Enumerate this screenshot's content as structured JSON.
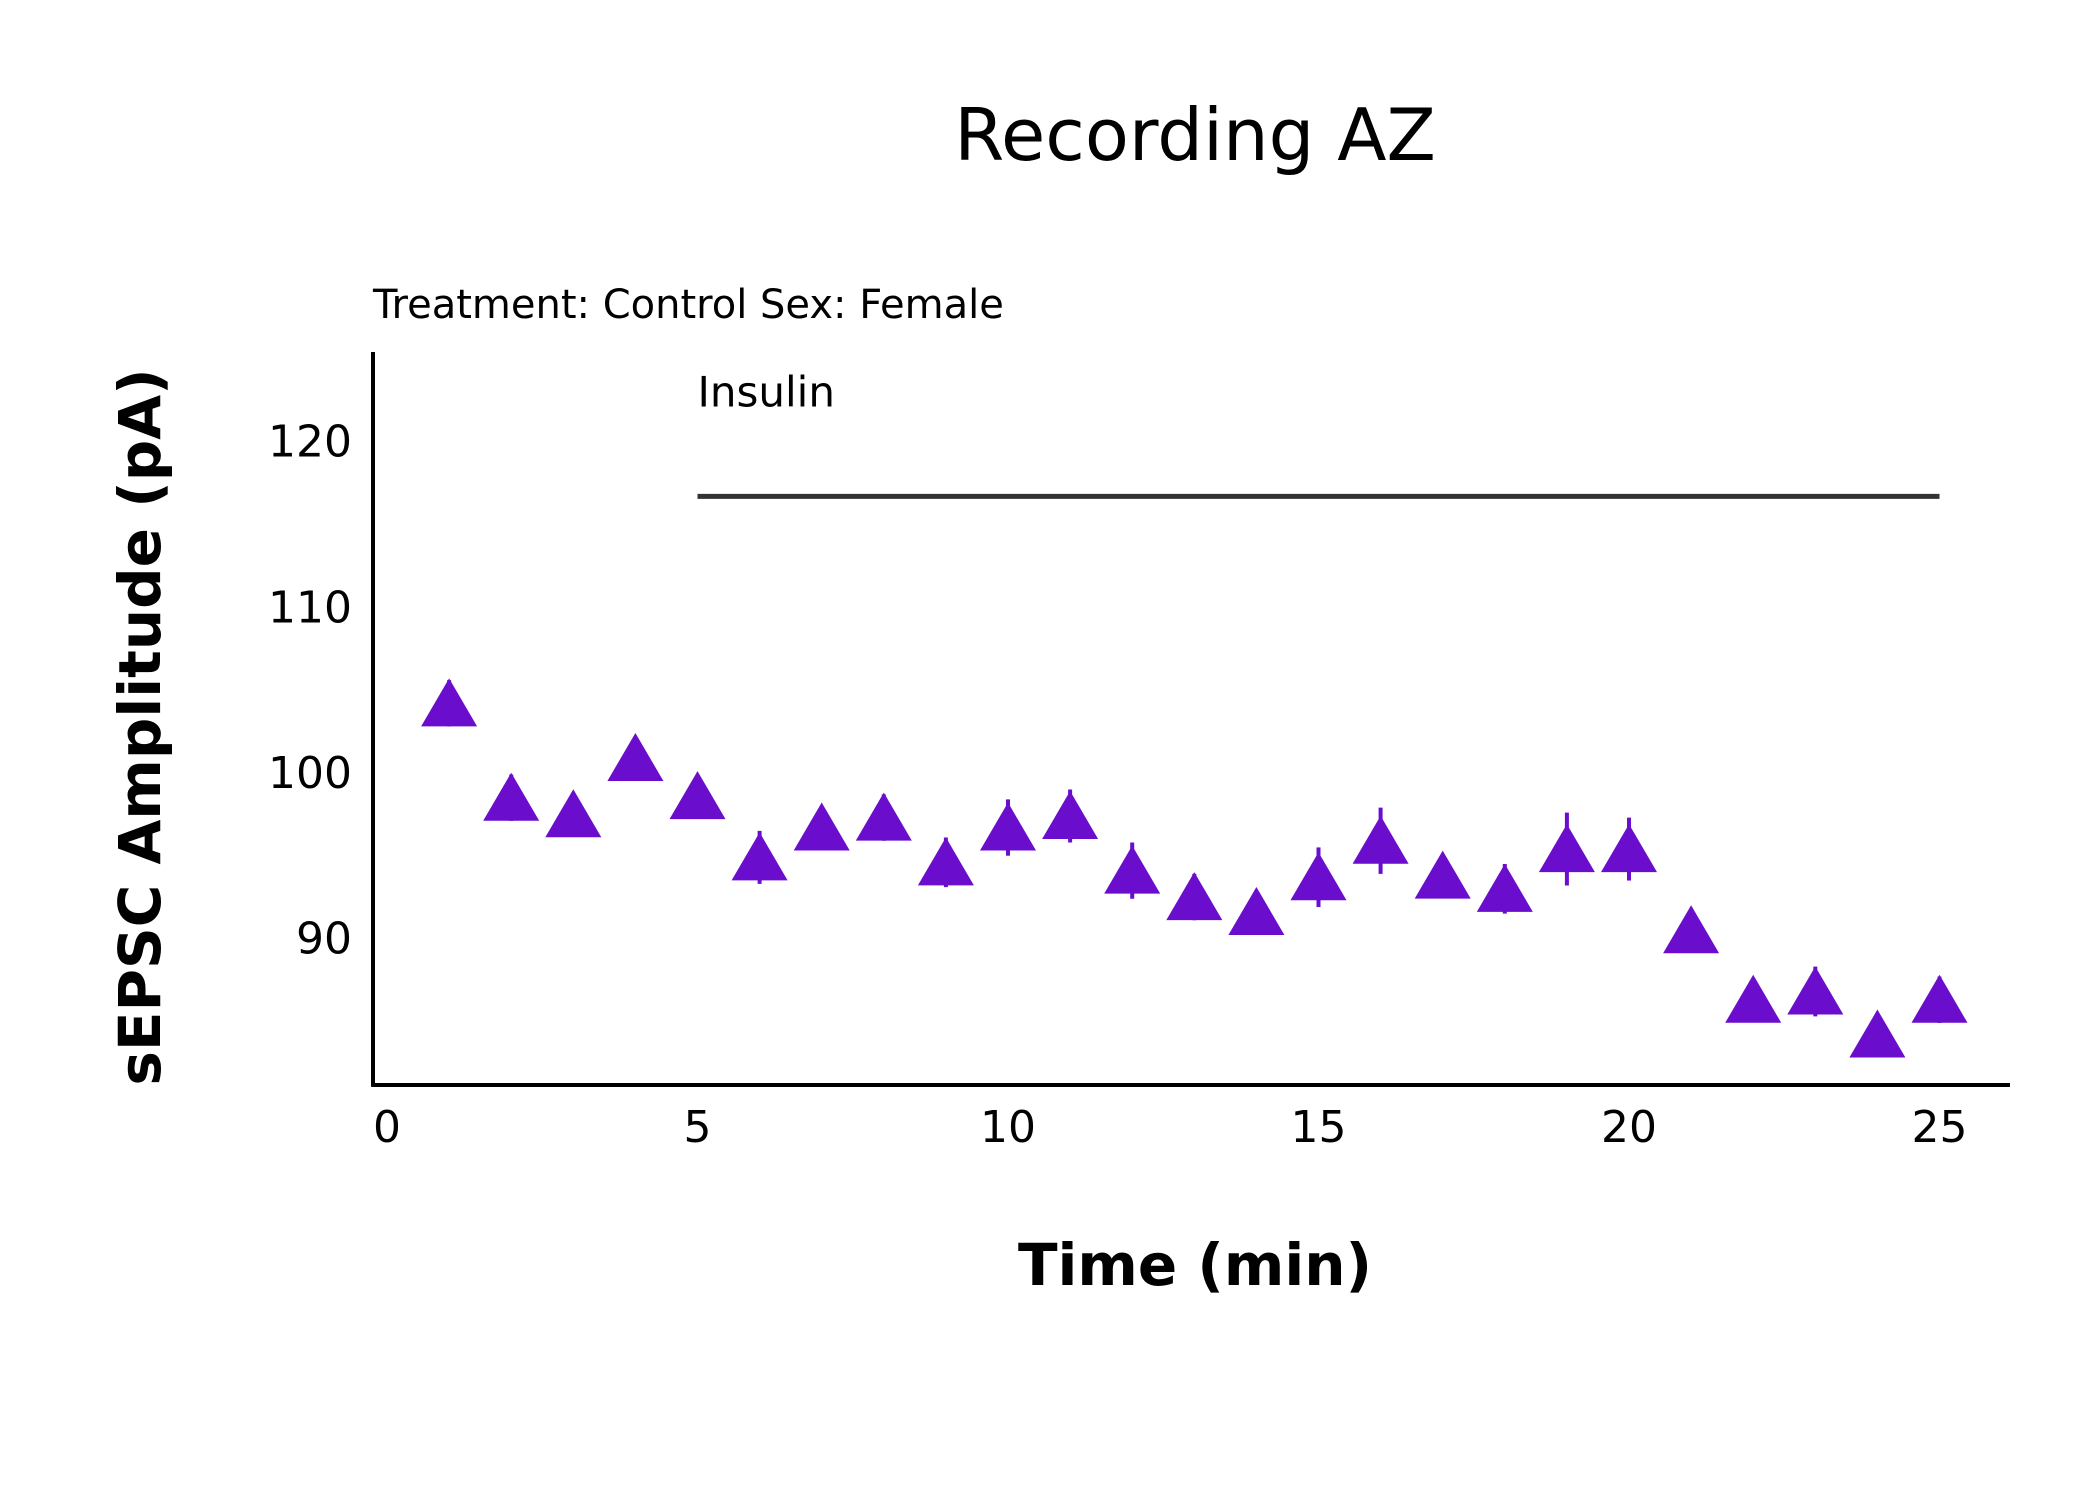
{
  "chart_data": {
    "type": "scatter",
    "title": "Recording AZ",
    "subtitle": "Treatment: Control  Sex: Female",
    "xlabel": "Time (min)",
    "ylabel": "sEPSC Amplitude (pA)",
    "xlim": [
      0,
      26
    ],
    "ylim": [
      81,
      125
    ],
    "xticks": [
      0,
      5,
      10,
      15,
      20,
      25
    ],
    "yticks": [
      90,
      100,
      110,
      120
    ],
    "grid": false,
    "legend": "none",
    "marker": "triangle-up",
    "color": "#6a0dcc",
    "annotation": {
      "label": "Insulin",
      "x_start": 5,
      "x_end": 25,
      "y": 116.7
    },
    "series": [
      {
        "x": [
          1,
          2,
          3,
          4,
          5,
          6,
          7,
          8,
          9,
          10,
          11,
          12,
          13,
          14,
          15,
          16,
          17,
          18,
          19,
          20,
          21,
          22,
          23,
          24,
          25
        ],
        "y": [
          104.2,
          98.5,
          97.5,
          100.9,
          98.6,
          94.9,
          96.7,
          97.3,
          94.6,
          96.7,
          97.4,
          94.1,
          92.5,
          91.6,
          93.7,
          95.9,
          93.8,
          93.0,
          95.4,
          95.4,
          90.5,
          86.3,
          86.8,
          84.2,
          86.3
        ],
        "err": [
          1.4,
          1.4,
          1.3,
          1.3,
          1.3,
          1.6,
          1.2,
          1.4,
          1.5,
          1.7,
          1.6,
          1.7,
          1.4,
          1.3,
          1.8,
          2.0,
          1.2,
          1.5,
          2.2,
          1.9,
          1.3,
          1.3,
          1.5,
          1.3,
          1.4
        ]
      }
    ]
  }
}
